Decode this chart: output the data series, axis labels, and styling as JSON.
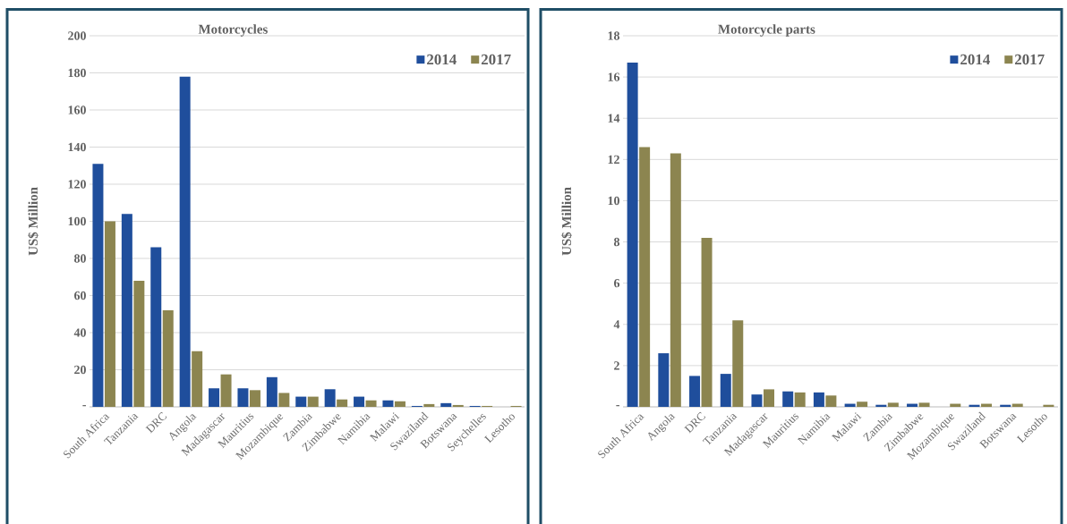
{
  "chart_data": [
    {
      "type": "bar",
      "title": "Motorcycles",
      "ylabel": "US$ Million",
      "categories": [
        "South Africa",
        "Tanzania",
        "DRC",
        "Angola",
        "Madagascar",
        "Mauritius",
        "Mozambique",
        "Zambia",
        "Zimbabwe",
        "Namibia",
        "Malawi",
        "Swaziland",
        "Botswana",
        "Seychelles",
        "Lesotho"
      ],
      "series": [
        {
          "name": "2014",
          "color": "#1f4e9c",
          "values": [
            131,
            104,
            86,
            178,
            10,
            10,
            16,
            5.5,
            9.5,
            5.5,
            3.5,
            0.5,
            2,
            0.5,
            0
          ]
        },
        {
          "name": "2017",
          "color": "#8c8550",
          "values": [
            100,
            68,
            52,
            30,
            17.5,
            9,
            7.5,
            5.5,
            4,
            3.5,
            3,
            1.5,
            1,
            0.5,
            0.5
          ]
        }
      ],
      "ylim": [
        0,
        200
      ],
      "yticks": [
        {
          "value": 0,
          "label": "-"
        },
        20,
        40,
        60,
        80,
        100,
        120,
        140,
        160,
        180,
        200
      ],
      "grid": "y",
      "legend": "top right"
    },
    {
      "type": "bar",
      "title": "Motorcycle parts",
      "ylabel": "US$ Million",
      "categories": [
        "South Africa",
        "Angola",
        "DRC",
        "Tanzania",
        "Madagascar",
        "Mauritius",
        "Namibia",
        "Malawi",
        "Zambia",
        "Zimbabwe",
        "Mozambique",
        "Swaziland",
        "Botswana",
        "Lesotho"
      ],
      "series": [
        {
          "name": "2014",
          "color": "#1f4e9c",
          "values": [
            16.7,
            2.6,
            1.5,
            1.6,
            0.6,
            0.75,
            0.7,
            0.15,
            0.1,
            0.15,
            0,
            0.1,
            0.1,
            0
          ]
        },
        {
          "name": "2017",
          "color": "#8c8550",
          "values": [
            12.6,
            12.3,
            8.2,
            4.2,
            0.85,
            0.7,
            0.55,
            0.25,
            0.2,
            0.2,
            0.15,
            0.15,
            0.15,
            0.1
          ]
        }
      ],
      "ylim": [
        0,
        18
      ],
      "yticks": [
        {
          "value": 0,
          "label": "-"
        },
        2,
        4,
        6,
        8,
        10,
        12,
        14,
        16,
        18
      ],
      "grid": "y",
      "legend": "top right"
    }
  ]
}
